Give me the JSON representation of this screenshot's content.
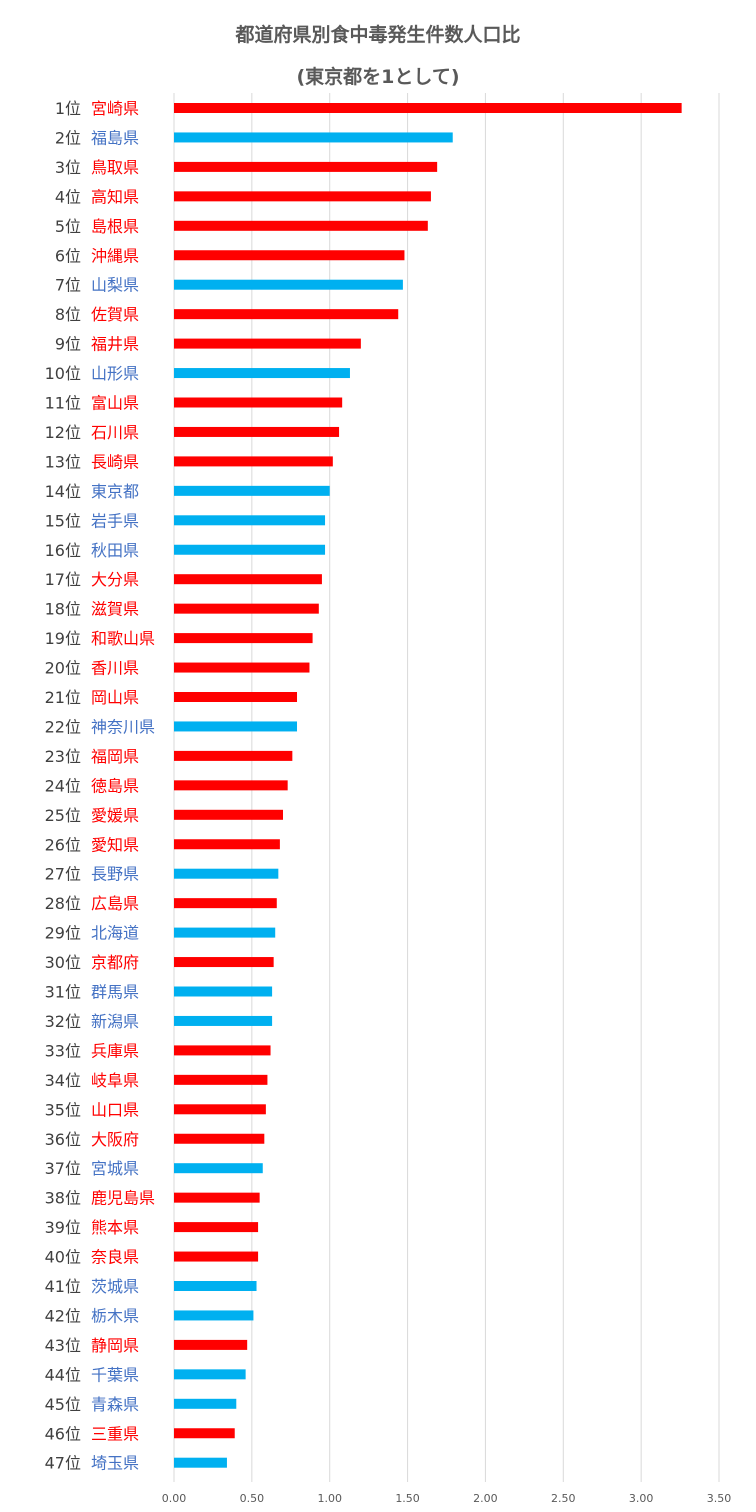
{
  "colors": {
    "highlight": "#ff0000",
    "normal": "#00b0f0",
    "grid": "#d9d9d9",
    "name_highlight": "#ff0000",
    "name_normal": "#4472c4"
  },
  "chart_data": {
    "type": "bar",
    "orientation": "horizontal",
    "title": "都道府県別食中毒発生件数人口比",
    "subtitle": "(東京都を1として)",
    "xlim": [
      0,
      3.5
    ],
    "xticks": [
      "0.00",
      "0.50",
      "1.00",
      "1.50",
      "2.00",
      "2.50",
      "3.00",
      "3.50"
    ],
    "grid": true,
    "legend": "none",
    "categories": [
      {
        "rank": "1位",
        "name": "宮崎県",
        "value": 3.26,
        "highlight": true
      },
      {
        "rank": "2位",
        "name": "福島県",
        "value": 1.79,
        "highlight": false
      },
      {
        "rank": "3位",
        "name": "鳥取県",
        "value": 1.69,
        "highlight": true
      },
      {
        "rank": "4位",
        "name": "高知県",
        "value": 1.65,
        "highlight": true
      },
      {
        "rank": "5位",
        "name": "島根県",
        "value": 1.63,
        "highlight": true
      },
      {
        "rank": "6位",
        "name": "沖縄県",
        "value": 1.48,
        "highlight": true
      },
      {
        "rank": "7位",
        "name": "山梨県",
        "value": 1.47,
        "highlight": false
      },
      {
        "rank": "8位",
        "name": "佐賀県",
        "value": 1.44,
        "highlight": true
      },
      {
        "rank": "9位",
        "name": "福井県",
        "value": 1.2,
        "highlight": true
      },
      {
        "rank": "10位",
        "name": "山形県",
        "value": 1.13,
        "highlight": false
      },
      {
        "rank": "11位",
        "name": "富山県",
        "value": 1.08,
        "highlight": true
      },
      {
        "rank": "12位",
        "name": "石川県",
        "value": 1.06,
        "highlight": true
      },
      {
        "rank": "13位",
        "name": "長崎県",
        "value": 1.02,
        "highlight": true
      },
      {
        "rank": "14位",
        "name": "東京都",
        "value": 1.0,
        "highlight": false
      },
      {
        "rank": "15位",
        "name": "岩手県",
        "value": 0.97,
        "highlight": false
      },
      {
        "rank": "16位",
        "name": "秋田県",
        "value": 0.97,
        "highlight": false
      },
      {
        "rank": "17位",
        "name": "大分県",
        "value": 0.95,
        "highlight": true
      },
      {
        "rank": "18位",
        "name": "滋賀県",
        "value": 0.93,
        "highlight": true
      },
      {
        "rank": "19位",
        "name": "和歌山県",
        "value": 0.89,
        "highlight": true
      },
      {
        "rank": "20位",
        "name": "香川県",
        "value": 0.87,
        "highlight": true
      },
      {
        "rank": "21位",
        "name": "岡山県",
        "value": 0.79,
        "highlight": true
      },
      {
        "rank": "22位",
        "name": "神奈川県",
        "value": 0.79,
        "highlight": false
      },
      {
        "rank": "23位",
        "name": "福岡県",
        "value": 0.76,
        "highlight": true
      },
      {
        "rank": "24位",
        "name": "徳島県",
        "value": 0.73,
        "highlight": true
      },
      {
        "rank": "25位",
        "name": "愛媛県",
        "value": 0.7,
        "highlight": true
      },
      {
        "rank": "26位",
        "name": "愛知県",
        "value": 0.68,
        "highlight": true
      },
      {
        "rank": "27位",
        "name": "長野県",
        "value": 0.67,
        "highlight": false
      },
      {
        "rank": "28位",
        "name": "広島県",
        "value": 0.66,
        "highlight": true
      },
      {
        "rank": "29位",
        "name": "北海道",
        "value": 0.65,
        "highlight": false
      },
      {
        "rank": "30位",
        "name": "京都府",
        "value": 0.64,
        "highlight": true
      },
      {
        "rank": "31位",
        "name": "群馬県",
        "value": 0.63,
        "highlight": false
      },
      {
        "rank": "32位",
        "name": "新潟県",
        "value": 0.63,
        "highlight": false
      },
      {
        "rank": "33位",
        "name": "兵庫県",
        "value": 0.62,
        "highlight": true
      },
      {
        "rank": "34位",
        "name": "岐阜県",
        "value": 0.6,
        "highlight": true
      },
      {
        "rank": "35位",
        "name": "山口県",
        "value": 0.59,
        "highlight": true
      },
      {
        "rank": "36位",
        "name": "大阪府",
        "value": 0.58,
        "highlight": true
      },
      {
        "rank": "37位",
        "name": "宮城県",
        "value": 0.57,
        "highlight": false
      },
      {
        "rank": "38位",
        "name": "鹿児島県",
        "value": 0.55,
        "highlight": true
      },
      {
        "rank": "39位",
        "name": "熊本県",
        "value": 0.54,
        "highlight": true
      },
      {
        "rank": "40位",
        "name": "奈良県",
        "value": 0.54,
        "highlight": true
      },
      {
        "rank": "41位",
        "name": "茨城県",
        "value": 0.53,
        "highlight": false
      },
      {
        "rank": "42位",
        "name": "栃木県",
        "value": 0.51,
        "highlight": false
      },
      {
        "rank": "43位",
        "name": "静岡県",
        "value": 0.47,
        "highlight": true
      },
      {
        "rank": "44位",
        "name": "千葉県",
        "value": 0.46,
        "highlight": false
      },
      {
        "rank": "45位",
        "name": "青森県",
        "value": 0.4,
        "highlight": false
      },
      {
        "rank": "46位",
        "name": "三重県",
        "value": 0.39,
        "highlight": true
      },
      {
        "rank": "47位",
        "name": "埼玉県",
        "value": 0.34,
        "highlight": false
      }
    ]
  }
}
